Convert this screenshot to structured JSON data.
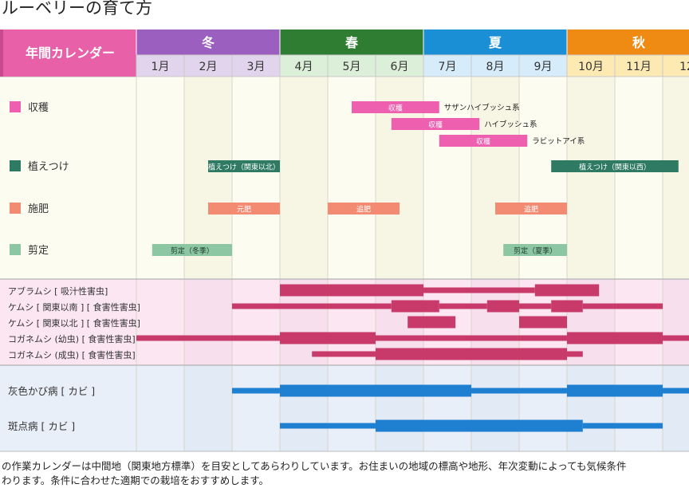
{
  "page": {
    "title": "ルーベリーの育て方",
    "header_label": "年間カレンダー",
    "notes": [
      "の作業カレンダーは中間地（関東地方標準）を目安としてあらわりしています。お住まいの地域の標高や地形、年次変動によっても気候条件",
      "わります。条件に合わせた適期での栽培をおすすめします。"
    ]
  },
  "colors": {
    "header_pink": "#e760a8",
    "winter": "#9b5fc0",
    "spring": "#2e7d32",
    "summer": "#1a8fd6",
    "autumn": "#ef8a12",
    "harvest": "#ef5fb0",
    "planting": "#2f7a63",
    "fertilizer": "#f38b72",
    "pruning": "#8cc6a3",
    "pest": "#c83a6a",
    "disease": "#1f7fd0"
  },
  "chart_data": {
    "type": "gantt",
    "seasons": [
      {
        "name": "冬",
        "start_month": 0,
        "end_month": 3
      },
      {
        "name": "春",
        "start_month": 3,
        "end_month": 6
      },
      {
        "name": "夏",
        "start_month": 6,
        "end_month": 9
      },
      {
        "name": "秋",
        "start_month": 9,
        "end_month": 12
      }
    ],
    "months": [
      "1月",
      "2月",
      "3月",
      "4月",
      "5月",
      "6月",
      "7月",
      "8月",
      "9月",
      "10月",
      "11月",
      "12"
    ],
    "tasks": [
      {
        "label": "収穫",
        "color_key": "harvest",
        "bars": [
          {
            "start": 4.5,
            "end": 6.33,
            "label": "収穫",
            "note": "サザンハイブッシュ系",
            "lane": 0
          },
          {
            "start": 5.33,
            "end": 7.17,
            "label": "収穫",
            "note": "ハイブッシュ系",
            "lane": 1
          },
          {
            "start": 6.33,
            "end": 8.17,
            "label": "収穫",
            "note": "ラビットアイ系",
            "lane": 2
          }
        ]
      },
      {
        "label": "植えつけ",
        "color_key": "planting",
        "bars": [
          {
            "start": 1.5,
            "end": 3.0,
            "label": "植えつけ（関東以北）",
            "lane": 0
          },
          {
            "start": 8.67,
            "end": 11.33,
            "label": "植えつけ（関東以西）",
            "lane": 0
          }
        ]
      },
      {
        "label": "施肥",
        "color_key": "fertilizer",
        "bars": [
          {
            "start": 1.5,
            "end": 3.0,
            "label": "元肥",
            "lane": 0
          },
          {
            "start": 4.0,
            "end": 5.5,
            "label": "追肥",
            "lane": 0
          },
          {
            "start": 7.5,
            "end": 9.0,
            "label": "追肥",
            "lane": 0
          }
        ]
      },
      {
        "label": "剪定",
        "color_key": "pruning",
        "bars": [
          {
            "start": 0.33,
            "end": 2.0,
            "label": "剪定（冬季）",
            "lane": 0
          },
          {
            "start": 7.67,
            "end": 9.0,
            "label": "剪定（夏季）",
            "lane": 0
          }
        ]
      }
    ],
    "pests": [
      {
        "label": "アブラムシ [ 吸汁性害虫]",
        "segments": [
          {
            "start": 3.0,
            "end": 6.0,
            "w": "thick"
          },
          {
            "start": 6.0,
            "end": 8.33,
            "w": "thin"
          },
          {
            "start": 8.33,
            "end": 9.67,
            "w": "thick"
          }
        ]
      },
      {
        "label": "ケムシ [ 関東以南 ] [ 食害性害虫]",
        "segments": [
          {
            "start": 2.0,
            "end": 5.33,
            "w": "thin"
          },
          {
            "start": 5.33,
            "end": 6.33,
            "w": "thick"
          },
          {
            "start": 6.33,
            "end": 7.33,
            "w": "thin"
          },
          {
            "start": 7.33,
            "end": 8.0,
            "w": "thick"
          },
          {
            "start": 8.0,
            "end": 8.67,
            "w": "thin"
          },
          {
            "start": 8.67,
            "end": 9.33,
            "w": "thick"
          },
          {
            "start": 9.33,
            "end": 11.0,
            "w": "thin"
          }
        ]
      },
      {
        "label": "ケムシ [ 関東以北 ] [ 食害性害虫]",
        "segments": [
          {
            "start": 5.67,
            "end": 6.67,
            "w": "thick"
          },
          {
            "start": 8.0,
            "end": 9.0,
            "w": "thick"
          }
        ]
      },
      {
        "label": "コガネムシ (幼虫) [ 食害性害虫]",
        "segments": [
          {
            "start": 0.0,
            "end": 3.0,
            "w": "thin"
          },
          {
            "start": 3.0,
            "end": 5.0,
            "w": "thick"
          },
          {
            "start": 5.0,
            "end": 9.0,
            "w": "thin"
          },
          {
            "start": 9.0,
            "end": 11.0,
            "w": "thick"
          },
          {
            "start": 11.0,
            "end": 12.2,
            "w": "thin"
          }
        ]
      },
      {
        "label": "コガネムシ (成虫) [ 食害性害虫]",
        "segments": [
          {
            "start": 3.67,
            "end": 5.0,
            "w": "thin"
          },
          {
            "start": 5.0,
            "end": 9.0,
            "w": "thick"
          },
          {
            "start": 9.0,
            "end": 9.33,
            "w": "thin"
          }
        ]
      }
    ],
    "diseases": [
      {
        "label": "灰色かび病 [ カビ ]",
        "segments": [
          {
            "start": 2.0,
            "end": 3.0,
            "w": "thin"
          },
          {
            "start": 3.0,
            "end": 7.0,
            "w": "thick"
          },
          {
            "start": 7.0,
            "end": 9.0,
            "w": "thin"
          },
          {
            "start": 9.0,
            "end": 11.0,
            "w": "thick"
          },
          {
            "start": 11.0,
            "end": 12.2,
            "w": "thin"
          }
        ]
      },
      {
        "label": "斑点病 [ カビ ]",
        "segments": [
          {
            "start": 3.0,
            "end": 5.0,
            "w": "thin"
          },
          {
            "start": 5.0,
            "end": 9.33,
            "w": "thick"
          },
          {
            "start": 9.33,
            "end": 11.0,
            "w": "thin"
          }
        ]
      }
    ]
  }
}
